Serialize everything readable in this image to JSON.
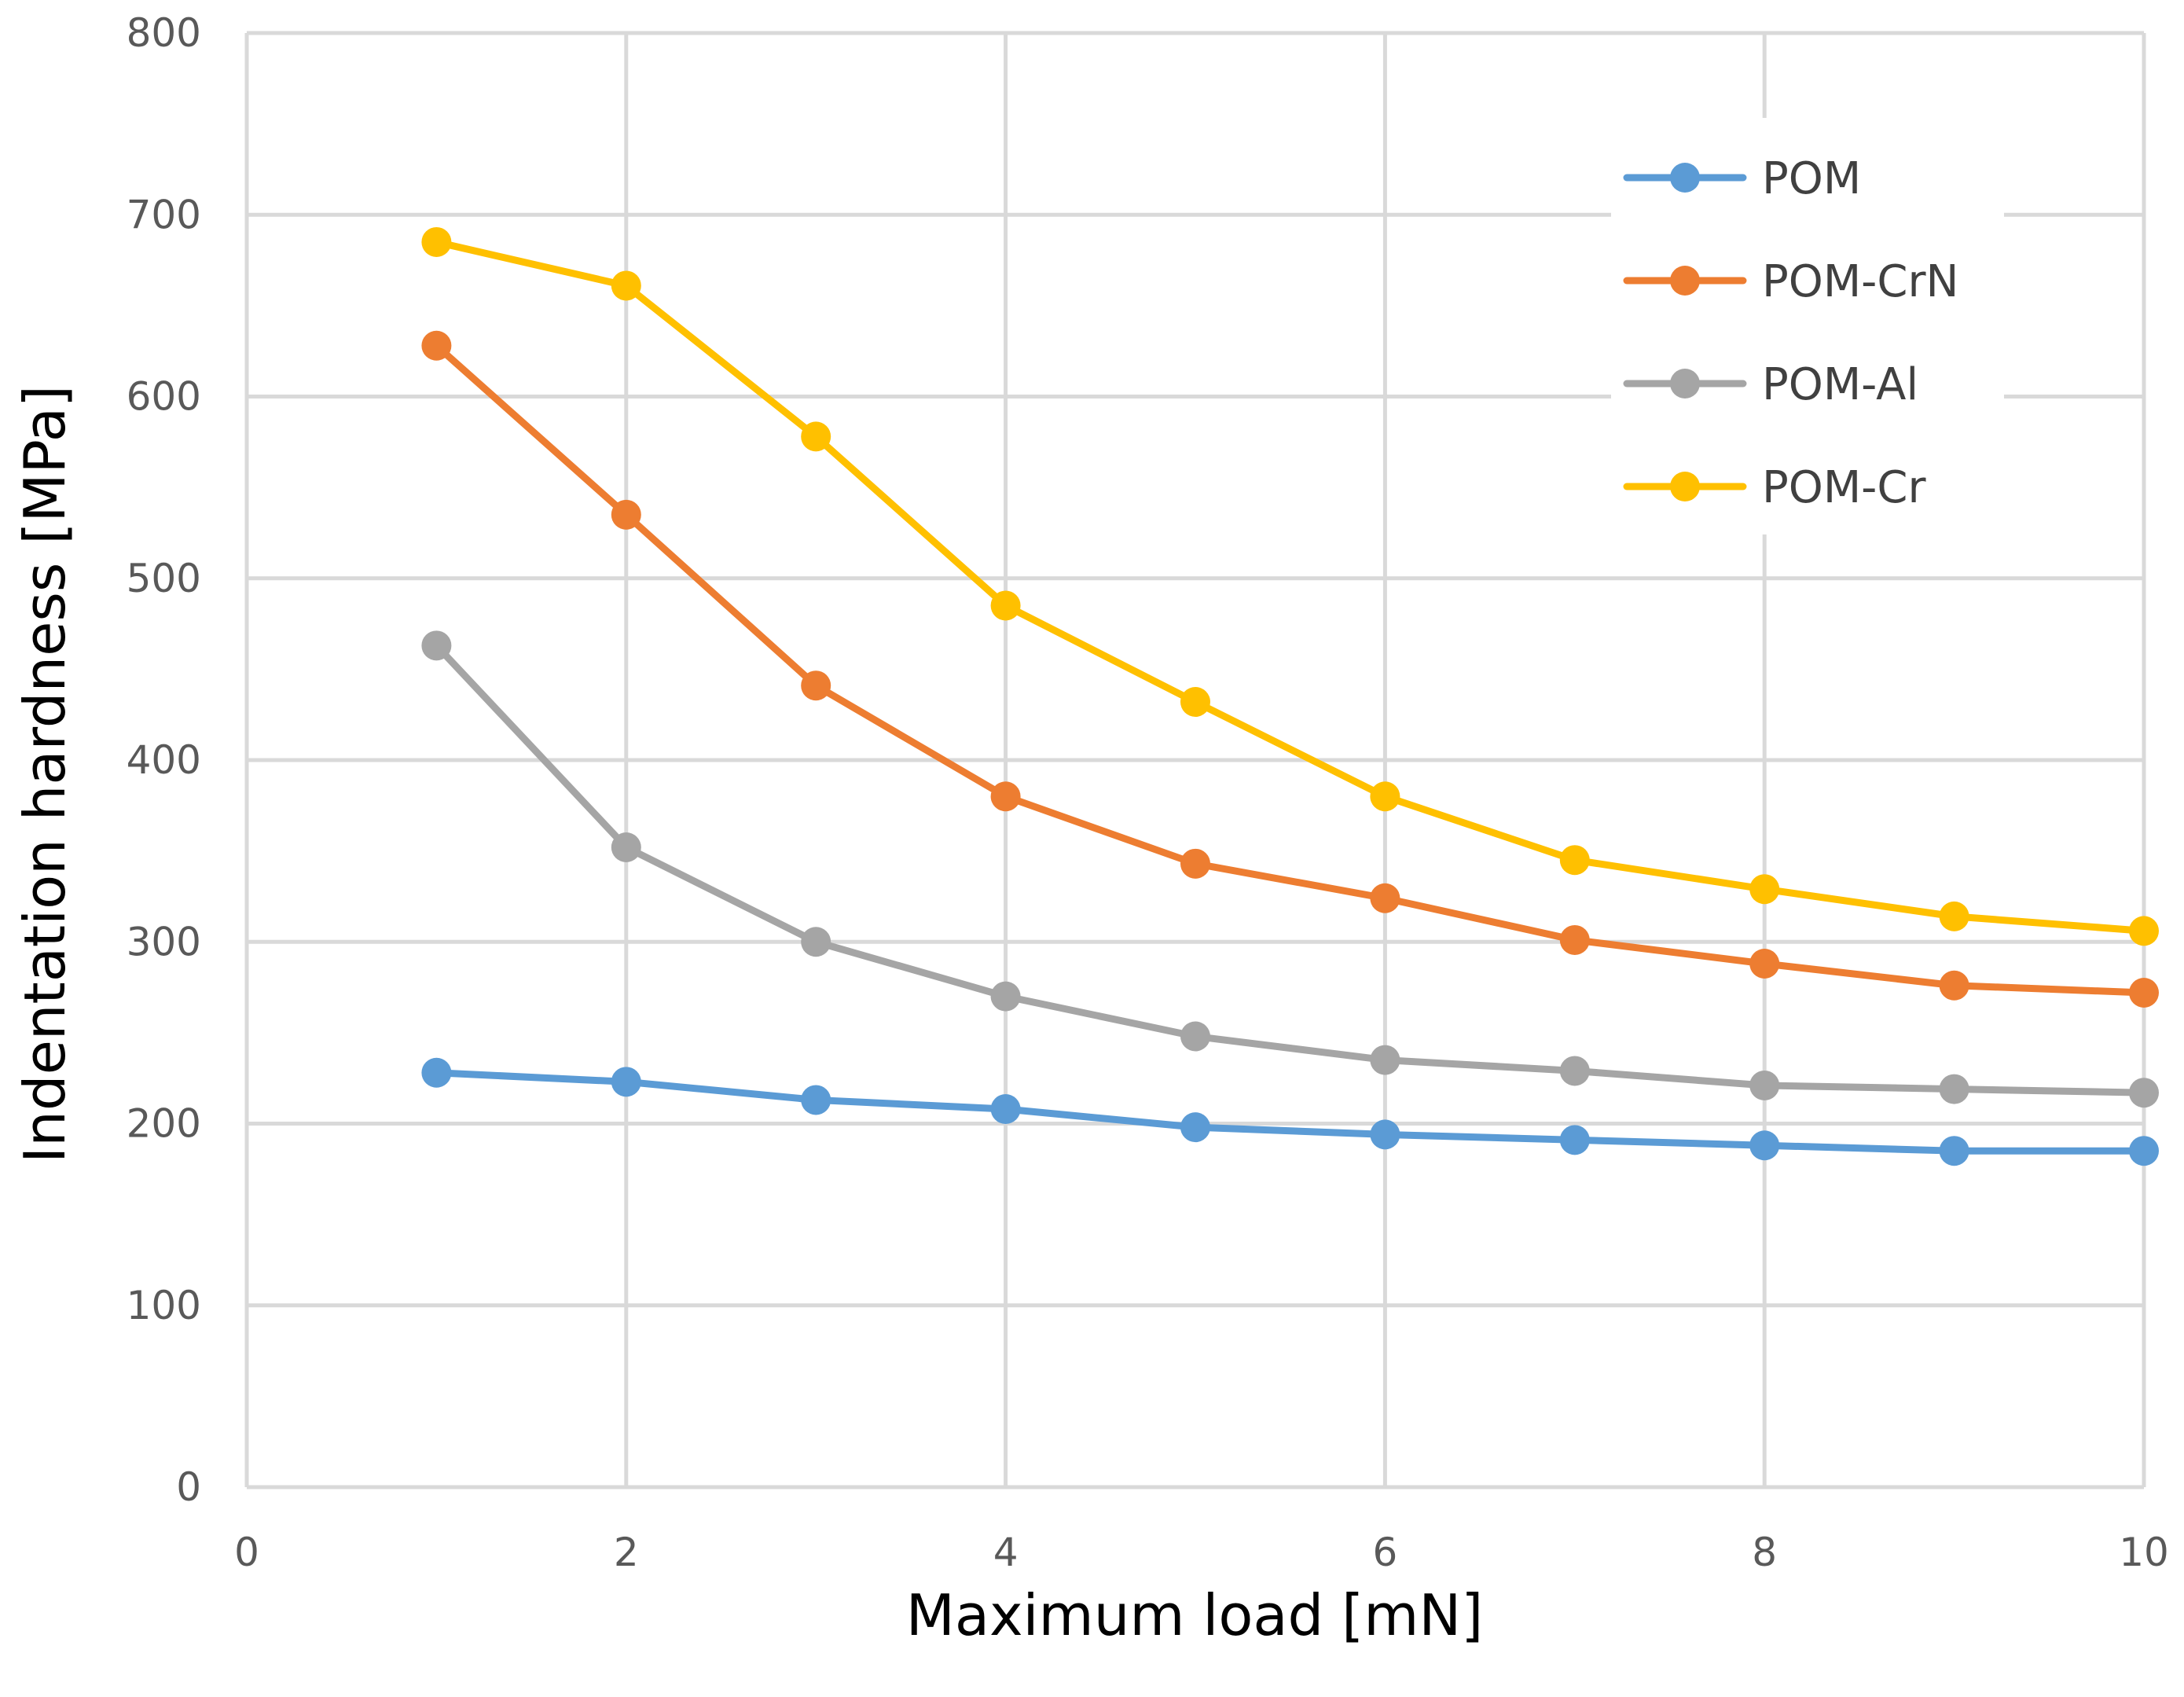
{
  "chart_data": {
    "type": "line",
    "title": "",
    "xlabel": "Maximum load [mN]",
    "ylabel": "Indentation hardness [MPa]",
    "xlim": [
      0,
      10
    ],
    "ylim": [
      0,
      800
    ],
    "xticks": [
      0,
      2,
      4,
      6,
      8,
      10
    ],
    "yticks": [
      0,
      100,
      200,
      300,
      400,
      500,
      600,
      700,
      800
    ],
    "xtick_labels": [
      "0",
      "2",
      "4",
      "6",
      "8",
      "10"
    ],
    "ytick_labels": [
      "0",
      "100",
      "200",
      "300",
      "400",
      "500",
      "600",
      "700",
      "800"
    ],
    "grid": true,
    "legend_position": "top-right",
    "x": [
      1,
      2,
      3,
      4,
      5,
      6,
      7,
      8,
      9,
      10
    ],
    "series": [
      {
        "name": "POM",
        "color": "#5b9bd5",
        "values": [
          228,
          223,
          213,
          208,
          198,
          194,
          191,
          188,
          185,
          185
        ]
      },
      {
        "name": "POM-CrN",
        "color": "#ed7d31",
        "values": [
          628,
          535,
          441,
          380,
          343,
          324,
          301,
          288,
          276,
          272
        ]
      },
      {
        "name": "POM-Al",
        "color": "#a5a5a5",
        "values": [
          463,
          352,
          300,
          270,
          248,
          235,
          229,
          221,
          219,
          217
        ]
      },
      {
        "name": "POM-Cr",
        "color": "#ffc000",
        "values": [
          685,
          661,
          578,
          485,
          432,
          380,
          345,
          329,
          314,
          306
        ]
      }
    ]
  }
}
